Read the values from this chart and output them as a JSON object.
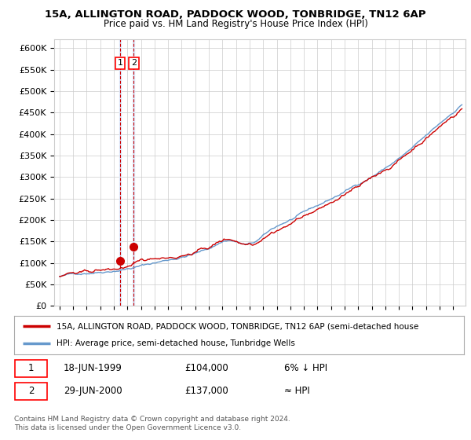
{
  "title1": "15A, ALLINGTON ROAD, PADDOCK WOOD, TONBRIDGE, TN12 6AP",
  "title2": "Price paid vs. HM Land Registry's House Price Index (HPI)",
  "ylim": [
    0,
    620000
  ],
  "yticks": [
    0,
    50000,
    100000,
    150000,
    200000,
    250000,
    300000,
    350000,
    400000,
    450000,
    500000,
    550000,
    600000
  ],
  "ytick_labels": [
    "£0",
    "£50K",
    "£100K",
    "£150K",
    "£200K",
    "£250K",
    "£300K",
    "£350K",
    "£400K",
    "£450K",
    "£500K",
    "£550K",
    "£600K"
  ],
  "line_color_hpi": "#6699cc",
  "line_color_price": "#cc0000",
  "point1_value": 104000,
  "point2_value": 137000,
  "vline_color": "#cc0000",
  "vband_color": "#ddeeff",
  "legend_line1": "15A, ALLINGTON ROAD, PADDOCK WOOD, TONBRIDGE, TN12 6AP (semi-detached house",
  "legend_line2": "HPI: Average price, semi-detached house, Tunbridge Wells",
  "table_row1": [
    "1",
    "18-JUN-1999",
    "£104,000",
    "6% ↓ HPI"
  ],
  "table_row2": [
    "2",
    "29-JUN-2000",
    "£137,000",
    "≈ HPI"
  ],
  "footnote1": "Contains HM Land Registry data © Crown copyright and database right 2024.",
  "footnote2": "This data is licensed under the Open Government Licence v3.0.",
  "bg_color": "#ffffff",
  "grid_color": "#cccccc",
  "xlim_start": 1994.6,
  "xlim_end": 2024.9,
  "x_start_year": 1995,
  "x_end_year": 2024
}
